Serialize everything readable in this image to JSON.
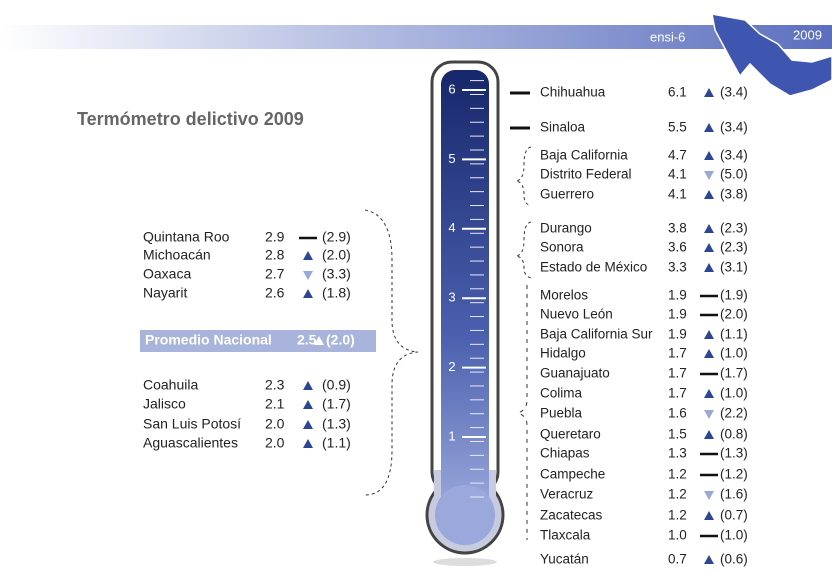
{
  "header": {
    "label": "ensi-6",
    "year": "2009"
  },
  "title": "Termómetro delictivo 2009",
  "scale": [
    1,
    2,
    3,
    4,
    5,
    6
  ],
  "left_list": {
    "top": [
      {
        "name": "Quintana Roo",
        "value": "2.9",
        "trend": "flat",
        "previous": "(2.9)"
      },
      {
        "name": "Michoacán",
        "value": "2.8",
        "trend": "up",
        "previous": "(2.0)"
      },
      {
        "name": "Oaxaca",
        "value": "2.7",
        "trend": "down",
        "previous": "(3.3)"
      },
      {
        "name": "Nayarit",
        "value": "2.6",
        "trend": "up",
        "previous": "(1.8)"
      }
    ],
    "average": {
      "name": "Promedio Nacional",
      "value": "2.5",
      "trend": "up",
      "previous": "(2.0)"
    },
    "bottom": [
      {
        "name": "Coahuila",
        "value": "2.3",
        "trend": "up",
        "previous": "(0.9)"
      },
      {
        "name": "Jalisco",
        "value": "2.1",
        "trend": "up",
        "previous": "(1.7)"
      },
      {
        "name": "San Luis Potosí",
        "value": "2.0",
        "trend": "up",
        "previous": "(1.3)"
      },
      {
        "name": "Aguascalientes",
        "value": "2.0",
        "trend": "up",
        "previous": "(1.1)"
      }
    ]
  },
  "right_list": [
    {
      "name": "Chihuahua",
      "value": "6.1",
      "trend": "up",
      "previous": "(3.4)"
    },
    {
      "name": "Sinaloa",
      "value": "5.5",
      "trend": "up",
      "previous": "(3.4)"
    },
    {
      "name": "Baja California",
      "value": "4.7",
      "trend": "up",
      "previous": "(3.4)"
    },
    {
      "name": "Distrito Federal",
      "value": "4.1",
      "trend": "down",
      "previous": "(5.0)"
    },
    {
      "name": "Guerrero",
      "value": "4.1",
      "trend": "up",
      "previous": "(3.8)"
    },
    {
      "name": "Durango",
      "value": "3.8",
      "trend": "up",
      "previous": "(2.3)"
    },
    {
      "name": "Sonora",
      "value": "3.6",
      "trend": "up",
      "previous": "(2.3)"
    },
    {
      "name": "Estado de México",
      "value": "3.3",
      "trend": "up",
      "previous": "(3.1)"
    },
    {
      "name": "Morelos",
      "value": "1.9",
      "trend": "flat",
      "previous": "(1.9)"
    },
    {
      "name": "Nuevo León",
      "value": "1.9",
      "trend": "flat",
      "previous": "(2.0)"
    },
    {
      "name": "Baja California Sur",
      "value": "1.9",
      "trend": "up",
      "previous": "(1.1)"
    },
    {
      "name": "Hidalgo",
      "value": "1.7",
      "trend": "up",
      "previous": "(1.0)"
    },
    {
      "name": "Guanajuato",
      "value": "1.7",
      "trend": "flat",
      "previous": "(1.7)"
    },
    {
      "name": "Colima",
      "value": "1.7",
      "trend": "up",
      "previous": "(1.0)"
    },
    {
      "name": "Puebla",
      "value": "1.6",
      "trend": "down",
      "previous": "(2.2)"
    },
    {
      "name": "Queretaro",
      "value": "1.5",
      "trend": "up",
      "previous": "(0.8)"
    },
    {
      "name": "Chiapas",
      "value": "1.3",
      "trend": "flat",
      "previous": "(1.3)"
    },
    {
      "name": "Campeche",
      "value": "1.2",
      "trend": "flat",
      "previous": "(1.2)"
    },
    {
      "name": "Veracruz",
      "value": "1.2",
      "trend": "down",
      "previous": "(1.6)"
    },
    {
      "name": "Zacatecas",
      "value": "1.2",
      "trend": "up",
      "previous": "(0.7)"
    },
    {
      "name": "Tlaxcala",
      "value": "1.0",
      "trend": "flat",
      "previous": "(1.0)"
    },
    {
      "name": "Yucatán",
      "value": "0.7",
      "trend": "up",
      "previous": "(0.6)"
    }
  ]
}
